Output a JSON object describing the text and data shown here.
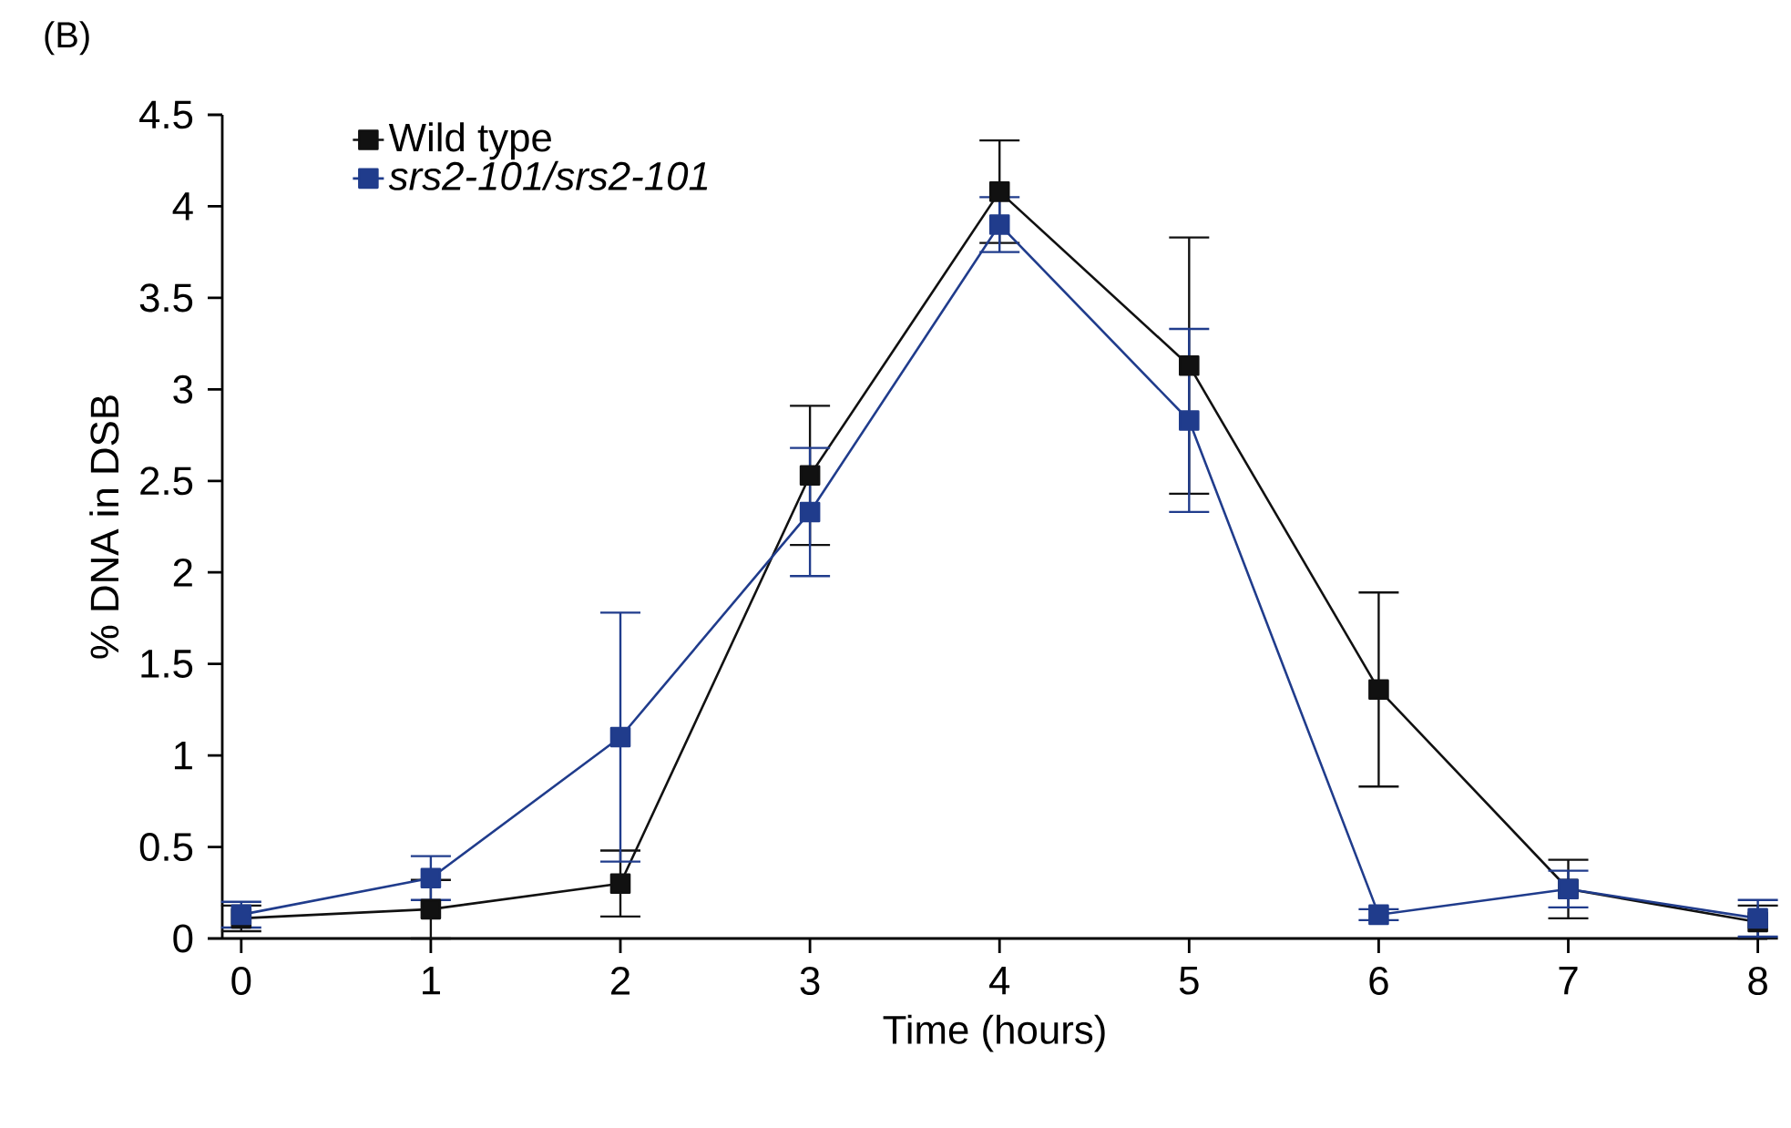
{
  "chart_data": {
    "type": "line",
    "title": "(B)",
    "xlabel": "Time (hours)",
    "ylabel": "% DNA in DSB",
    "x": [
      0,
      1,
      2,
      3,
      4,
      5,
      6,
      7,
      8
    ],
    "series": [
      {
        "name": "Wild type",
        "color": "#111111",
        "values": [
          0.11,
          0.16,
          0.3,
          2.53,
          4.08,
          3.13,
          1.36,
          0.27,
          0.09
        ],
        "errors": [
          0.07,
          0.16,
          0.18,
          0.38,
          0.28,
          0.7,
          0.53,
          0.16,
          0.09
        ]
      },
      {
        "name": "srs2-101/srs2-101",
        "color": "#203c8c",
        "values": [
          0.13,
          0.33,
          1.1,
          2.33,
          3.9,
          2.83,
          0.13,
          0.27,
          0.11
        ],
        "errors": [
          0.07,
          0.12,
          0.68,
          0.35,
          0.15,
          0.5,
          0.03,
          0.1,
          0.1
        ]
      }
    ],
    "xlim": [
      -0.1,
      8.05
    ],
    "ylim": [
      0,
      4.5
    ],
    "xticks": [
      0,
      1,
      2,
      3,
      4,
      5,
      6,
      7,
      8
    ],
    "yticks": [
      0,
      0.5,
      1,
      1.5,
      2,
      2.5,
      3,
      3.5,
      4,
      4.5
    ],
    "marker": "square",
    "line_style": "solid",
    "legend": "top left"
  }
}
